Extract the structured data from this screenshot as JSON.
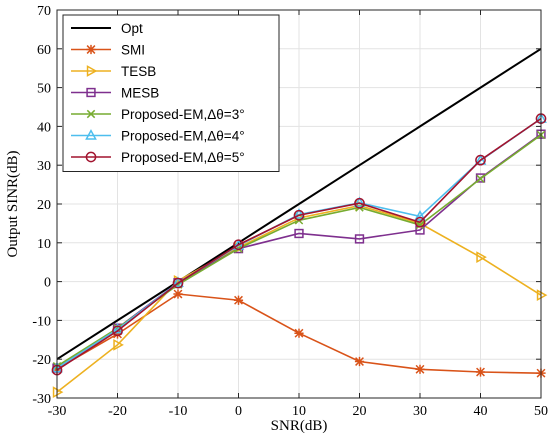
{
  "chart_data": {
    "type": "line",
    "xlabel": "SNR(dB)",
    "ylabel": "Output SINR(dB)",
    "xlim": [
      -30,
      50
    ],
    "ylim": [
      -30,
      70
    ],
    "xticks": [
      -30,
      -20,
      -10,
      0,
      10,
      20,
      30,
      40,
      50
    ],
    "yticks": [
      -30,
      -20,
      -10,
      0,
      10,
      20,
      30,
      40,
      50,
      60,
      70
    ],
    "xtick_labels": [
      "-30",
      "-20",
      "-10",
      "0",
      "10",
      "20",
      "30",
      "40",
      "50"
    ],
    "ytick_labels": [
      "-30",
      "-20",
      "-10",
      "0",
      "10",
      "20",
      "30",
      "40",
      "50",
      "60",
      "70"
    ],
    "grid": true,
    "legend_position": "top-left",
    "x": [
      -30,
      -20,
      -10,
      0,
      10,
      20,
      30,
      40,
      50
    ],
    "series": [
      {
        "name": "Opt",
        "color": "#000000",
        "marker": "none",
        "values": [
          -20,
          -10,
          0,
          10,
          20,
          30,
          40,
          50,
          60
        ]
      },
      {
        "name": "SMI",
        "color": "#d95319",
        "marker": "asterisk",
        "values": [
          -22.5,
          -13.5,
          -3.2,
          -4.8,
          -13.3,
          -20.6,
          -22.6,
          -23.3,
          -23.6
        ]
      },
      {
        "name": "TESB",
        "color": "#edb120",
        "marker": "triangle-right",
        "values": [
          -28.5,
          -16.3,
          0.2,
          8.8,
          16.4,
          19.6,
          15.0,
          6.3,
          -3.5
        ]
      },
      {
        "name": "MESB",
        "color": "#7e2f8e",
        "marker": "square",
        "values": [
          -22.3,
          -12.0,
          -0.3,
          8.5,
          12.4,
          11.0,
          13.3,
          26.7,
          38.0
        ]
      },
      {
        "name": "Proposed-EM,Δθ=3°",
        "color": "#77ac30",
        "marker": "x",
        "values": [
          -21.8,
          -12.0,
          -0.8,
          8.5,
          15.8,
          19.1,
          14.6,
          26.5,
          37.8
        ]
      },
      {
        "name": "Proposed-EM,Δθ=4°",
        "color": "#4dbeee",
        "marker": "triangle-up",
        "values": [
          -22.3,
          -12.3,
          -0.3,
          9.3,
          17.3,
          20.3,
          16.8,
          31.2,
          42.0
        ]
      },
      {
        "name": "Proposed-EM,Δθ=5°",
        "color": "#a2142f",
        "marker": "circle",
        "values": [
          -22.8,
          -12.7,
          -0.4,
          9.5,
          17.1,
          20.2,
          15.3,
          31.3,
          42.0
        ]
      }
    ]
  }
}
